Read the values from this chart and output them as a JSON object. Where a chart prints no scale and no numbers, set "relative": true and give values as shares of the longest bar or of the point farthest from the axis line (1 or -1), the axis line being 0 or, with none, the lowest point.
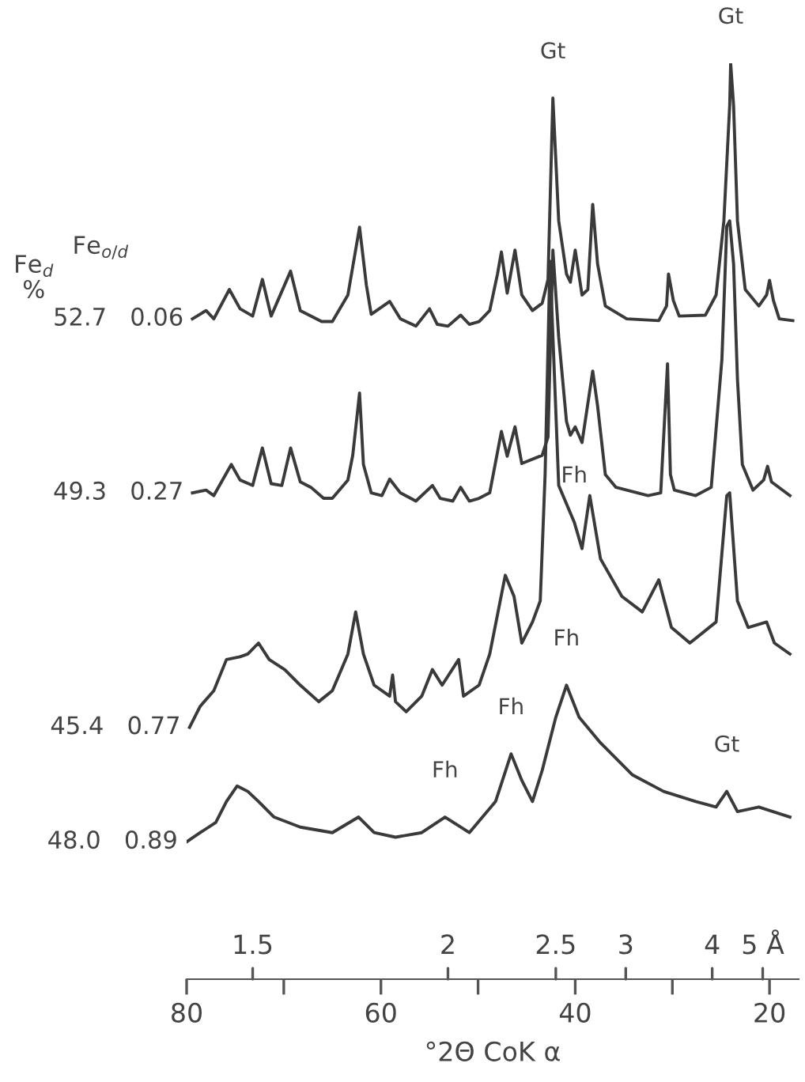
{
  "chart_data": {
    "type": "line",
    "relative": true,
    "xlabel": "°2Θ CoK α",
    "xlim": [
      80,
      17
    ],
    "xticks": [
      80,
      {
        "value": 70,
        "label": null
      },
      60,
      {
        "value": 50,
        "label": null
      },
      40,
      {
        "value": 30,
        "label": null
      },
      20
    ],
    "grid": false,
    "legend": false,
    "annotations": [
      "Fe$_{d}$\n%",
      "Fe$_{o/d}$",
      {
        "text": "Gt",
        "x": 42.3,
        "y": 0.962
      },
      {
        "text": "Gt",
        "x": 24.0,
        "y": 1.0
      },
      {
        "text": "Fh",
        "x": 40.1,
        "y": 0.499
      },
      {
        "text": "Fh",
        "x": 53.4,
        "y": 0.177
      },
      {
        "text": "Fh",
        "x": 46.6,
        "y": 0.246
      },
      {
        "text": "Fh",
        "x": 40.9,
        "y": 0.321
      },
      {
        "text": "Gt",
        "x": 24.4,
        "y": 0.205
      },
      {
        "text": "1.5",
        "x": 73.2
      },
      {
        "text": "2",
        "x": 53.1
      },
      {
        "text": "2.5",
        "x": 42.0
      },
      {
        "text": "3",
        "x": 34.8
      },
      {
        "text": "4",
        "x": 25.9
      },
      {
        "text": "5 Å",
        "x": 20.7
      }
    ],
    "series": [
      {
        "name": "52.7   0.06",
        "color": "#3a3a3a",
        "x": [
          79.4,
          78.0,
          77.2,
          75.6,
          74.5,
          73.2,
          72.2,
          71.3,
          69.3,
          68.3,
          66.1,
          65.0,
          63.4,
          62.2,
          61.5,
          61.0,
          59.1,
          58.0,
          56.4,
          55.0,
          54.2,
          53.1,
          51.8,
          50.9,
          49.9,
          48.8,
          48.0,
          47.6,
          47.0,
          46.2,
          45.5,
          44.4,
          43.4,
          42.8,
          42.3,
          41.7,
          40.9,
          40.5,
          40.0,
          39.3,
          38.7,
          38.2,
          37.7,
          36.9,
          34.7,
          31.4,
          30.6,
          30.4,
          29.9,
          29.3,
          26.6,
          25.5,
          24.7,
          24.1,
          24.0,
          23.7,
          23.3,
          22.5,
          21.1,
          20.3,
          20.0,
          19.6,
          19.0,
          17.6
        ],
        "values": [
          0.721,
          0.73,
          0.721,
          0.753,
          0.732,
          0.724,
          0.764,
          0.724,
          0.773,
          0.73,
          0.718,
          0.718,
          0.747,
          0.821,
          0.758,
          0.726,
          0.74,
          0.721,
          0.713,
          0.732,
          0.715,
          0.713,
          0.725,
          0.715,
          0.718,
          0.73,
          0.77,
          0.794,
          0.749,
          0.796,
          0.747,
          0.73,
          0.738,
          0.764,
          0.962,
          0.828,
          0.77,
          0.761,
          0.796,
          0.747,
          0.753,
          0.846,
          0.781,
          0.735,
          0.721,
          0.719,
          0.735,
          0.77,
          0.741,
          0.724,
          0.725,
          0.747,
          0.828,
          0.954,
          1.0,
          0.954,
          0.828,
          0.753,
          0.735,
          0.747,
          0.763,
          0.741,
          0.721,
          0.719
        ]
      },
      {
        "name": "49.3   0.27",
        "color": "#3a3a3a",
        "x": [
          79.4,
          78.0,
          77.2,
          75.4,
          74.5,
          73.2,
          72.2,
          71.3,
          70.2,
          69.3,
          68.3,
          67.2,
          65.9,
          65.0,
          63.4,
          62.9,
          62.2,
          61.8,
          61.0,
          59.9,
          59.1,
          58.0,
          56.4,
          54.7,
          53.9,
          52.6,
          51.8,
          50.9,
          49.9,
          48.8,
          47.6,
          47.0,
          46.2,
          45.5,
          43.4,
          42.8,
          42.3,
          41.7,
          40.9,
          40.5,
          40.0,
          39.3,
          38.2,
          37.7,
          36.9,
          35.8,
          32.5,
          31.2,
          30.5,
          30.2,
          29.8,
          27.6,
          26.0,
          24.9,
          24.4,
          24.1,
          23.7,
          23.3,
          22.8,
          21.7,
          20.6,
          20.2,
          19.8,
          17.9
        ],
        "values": [
          0.531,
          0.534,
          0.528,
          0.562,
          0.545,
          0.539,
          0.58,
          0.541,
          0.539,
          0.58,
          0.543,
          0.537,
          0.525,
          0.525,
          0.545,
          0.572,
          0.64,
          0.562,
          0.531,
          0.528,
          0.546,
          0.531,
          0.522,
          0.539,
          0.525,
          0.522,
          0.537,
          0.522,
          0.525,
          0.531,
          0.598,
          0.571,
          0.603,
          0.563,
          0.572,
          0.592,
          0.796,
          0.701,
          0.609,
          0.594,
          0.603,
          0.586,
          0.664,
          0.626,
          0.551,
          0.537,
          0.528,
          0.531,
          0.672,
          0.551,
          0.534,
          0.528,
          0.537,
          0.677,
          0.822,
          0.828,
          0.781,
          0.655,
          0.562,
          0.534,
          0.545,
          0.56,
          0.543,
          0.528
        ]
      },
      {
        "name": "45.4   0.77",
        "color": "#3a3a3a",
        "x": [
          79.7,
          78.6,
          77.2,
          75.9,
          74.5,
          73.7,
          72.6,
          71.5,
          69.9,
          68.3,
          66.4,
          65.0,
          63.4,
          62.6,
          61.8,
          60.7,
          59.1,
          58.8,
          58.5,
          57.4,
          55.8,
          54.7,
          53.7,
          52.0,
          51.5,
          49.9,
          48.8,
          47.2,
          46.3,
          45.5,
          44.4,
          43.6,
          43.1,
          42.6,
          41.7,
          40.1,
          39.3,
          38.5,
          37.4,
          35.2,
          33.1,
          31.4,
          30.1,
          28.2,
          25.5,
          24.4,
          24.1,
          23.3,
          22.2,
          20.3,
          19.5,
          17.9
        ],
        "values": [
          0.275,
          0.298,
          0.315,
          0.349,
          0.352,
          0.355,
          0.367,
          0.349,
          0.338,
          0.321,
          0.303,
          0.315,
          0.355,
          0.401,
          0.355,
          0.321,
          0.309,
          0.332,
          0.303,
          0.292,
          0.309,
          0.338,
          0.321,
          0.349,
          0.309,
          0.321,
          0.355,
          0.441,
          0.418,
          0.367,
          0.39,
          0.413,
          0.551,
          0.784,
          0.539,
          0.499,
          0.47,
          0.528,
          0.459,
          0.418,
          0.401,
          0.436,
          0.384,
          0.367,
          0.39,
          0.528,
          0.531,
          0.413,
          0.384,
          0.39,
          0.367,
          0.355
        ]
      },
      {
        "name": "48.0   0.89",
        "color": "#3a3a3a",
        "x": [
          80.0,
          78.6,
          77.0,
          75.9,
          74.8,
          73.7,
          72.6,
          71.0,
          68.3,
          65.0,
          62.3,
          60.7,
          58.5,
          55.8,
          53.4,
          50.9,
          48.2,
          46.6,
          45.5,
          44.4,
          43.4,
          42.0,
          40.9,
          39.6,
          37.4,
          34.1,
          30.9,
          27.6,
          25.5,
          24.4,
          23.3,
          21.1,
          17.9
        ],
        "values": [
          0.15,
          0.16,
          0.171,
          0.194,
          0.211,
          0.205,
          0.194,
          0.177,
          0.166,
          0.16,
          0.177,
          0.16,
          0.155,
          0.16,
          0.177,
          0.16,
          0.194,
          0.246,
          0.217,
          0.194,
          0.228,
          0.286,
          0.321,
          0.286,
          0.258,
          0.223,
          0.205,
          0.194,
          0.188,
          0.205,
          0.183,
          0.188,
          0.177
        ]
      }
    ]
  }
}
